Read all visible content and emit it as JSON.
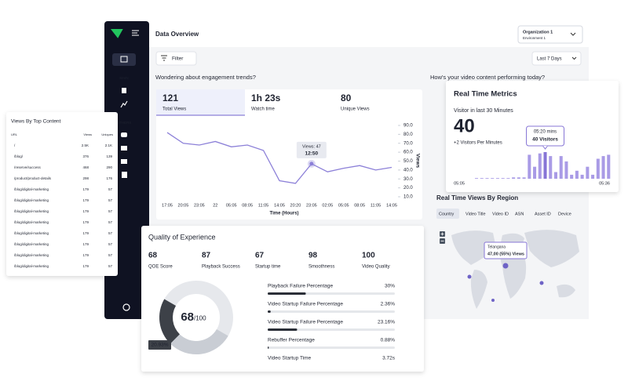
{
  "sidebar": {
    "sections": [
      "MAIN",
      "OTHERS"
    ]
  },
  "header": {
    "title": "Data Overview",
    "organization": "Organization 1",
    "environment": "Environment 1",
    "filter": "Filter",
    "range": "Last 7 Days"
  },
  "engagement": {
    "question": "Wondering about engagement trends?",
    "tabs": [
      {
        "value": "121",
        "label": "Total Views"
      },
      {
        "value": "1h 23s",
        "label": "Watch time"
      },
      {
        "value": "80",
        "label": "Unique Views"
      }
    ]
  },
  "performance_question": "How's your video content performing today?",
  "chart_data": [
    {
      "type": "line",
      "x_label": "Time (Hours)",
      "y_label": "Views",
      "categories": [
        "17:05",
        "20:05",
        "23:05",
        "22",
        "05:05",
        "08:05",
        "11:05",
        "14:05",
        "20:20",
        "23:05",
        "02:05",
        "05:05",
        "08:05",
        "11:05",
        "14:05"
      ],
      "values": [
        82,
        70,
        68,
        72,
        66,
        68,
        62,
        28,
        25,
        47,
        38,
        42,
        45,
        40,
        43
      ],
      "color": "#8c80d8",
      "ylim": [
        5,
        95
      ],
      "yticks": [
        {
          "value": 90,
          "label": "90.0"
        },
        {
          "value": 80,
          "label": "80.0"
        },
        {
          "value": 70,
          "label": "70.0"
        },
        {
          "value": 60,
          "label": "60.0"
        },
        {
          "value": 50,
          "label": "50.0"
        },
        {
          "value": 40,
          "label": "40.0"
        },
        {
          "value": 30,
          "label": "30.0"
        },
        {
          "value": 20,
          "label": "20.0"
        },
        {
          "value": 10,
          "label": "10.0"
        }
      ],
      "tooltip": {
        "index": 9,
        "label": "Views: 47",
        "time": "12:50"
      }
    },
    {
      "type": "bar",
      "title": "Real Time Metrics",
      "subtitle": "Visitor in last 30 Minutes",
      "big_value": "40",
      "note": "+2 Visitors Per Minutes",
      "tooltip": {
        "index": 13,
        "time": "05:20 mins",
        "label": "40 Visitors"
      },
      "values": [
        1,
        1,
        1,
        1,
        1,
        1,
        1,
        2,
        2,
        2,
        36,
        18,
        38,
        40,
        34,
        10,
        34,
        26,
        6,
        12,
        6,
        18,
        6,
        30,
        34,
        36
      ],
      "color": "#a99be6",
      "highlight_color": "#8776d6",
      "x_start": "05:05",
      "x_end": "05:36"
    }
  ],
  "region": {
    "title": "Real Time Views By Region",
    "tabs": [
      "Country",
      "Video Title",
      "Video ID",
      "ASN",
      "Asset ID",
      "Device"
    ],
    "tooltip": {
      "place": "Telangana",
      "views": "47,00 (55%) Views"
    }
  },
  "top_content": {
    "title": "Views By Top Content",
    "columns": [
      "URL",
      "Views",
      "Uniques"
    ],
    "rows": [
      [
        "/",
        "2.5K",
        "2.1K"
      ],
      [
        "/blog/",
        "376",
        "139"
      ],
      [
        "/reserve/success",
        "468",
        "290"
      ],
      [
        "/product/product-details",
        "298",
        "176"
      ],
      [
        "/blog/digital-marketing",
        "179",
        "57"
      ],
      [
        "/blog/digital-marketing",
        "179",
        "57"
      ],
      [
        "/blog/digital-marketing",
        "179",
        "57"
      ],
      [
        "/blog/digital-marketing",
        "179",
        "57"
      ],
      [
        "/blog/digital-marketing",
        "179",
        "57"
      ],
      [
        "/blog/digital-marketing",
        "179",
        "57"
      ],
      [
        "/blog/digital-marketing",
        "179",
        "57"
      ],
      [
        "/blog/digital-marketing",
        "179",
        "57"
      ]
    ]
  },
  "quality": {
    "title": "Quality of Experience",
    "scores": [
      {
        "value": "68",
        "label": "QOE Score"
      },
      {
        "value": "87",
        "label": "Playback Success"
      },
      {
        "value": "67",
        "label": "Startup time"
      },
      {
        "value": "98",
        "label": "Smoothness"
      },
      {
        "value": "100",
        "label": "Video Quality"
      }
    ],
    "donut": {
      "score": "68",
      "max": "/100",
      "segment": {
        "value": 20.93,
        "label": "20.93%"
      }
    },
    "bars": [
      {
        "name": "Playback Failure Percentage",
        "value": 30,
        "label": "30%"
      },
      {
        "name": "Video Startup Failure Percentage",
        "value": 2.36,
        "label": "2.36%"
      },
      {
        "name": "Video Startup Failure Percentage",
        "value": 23.16,
        "label": "23.16%"
      },
      {
        "name": "Rebuffer Percentage",
        "value": 0.88,
        "label": "0.88%"
      },
      {
        "name": "Video Startup Time",
        "label": "3.72s"
      }
    ]
  }
}
